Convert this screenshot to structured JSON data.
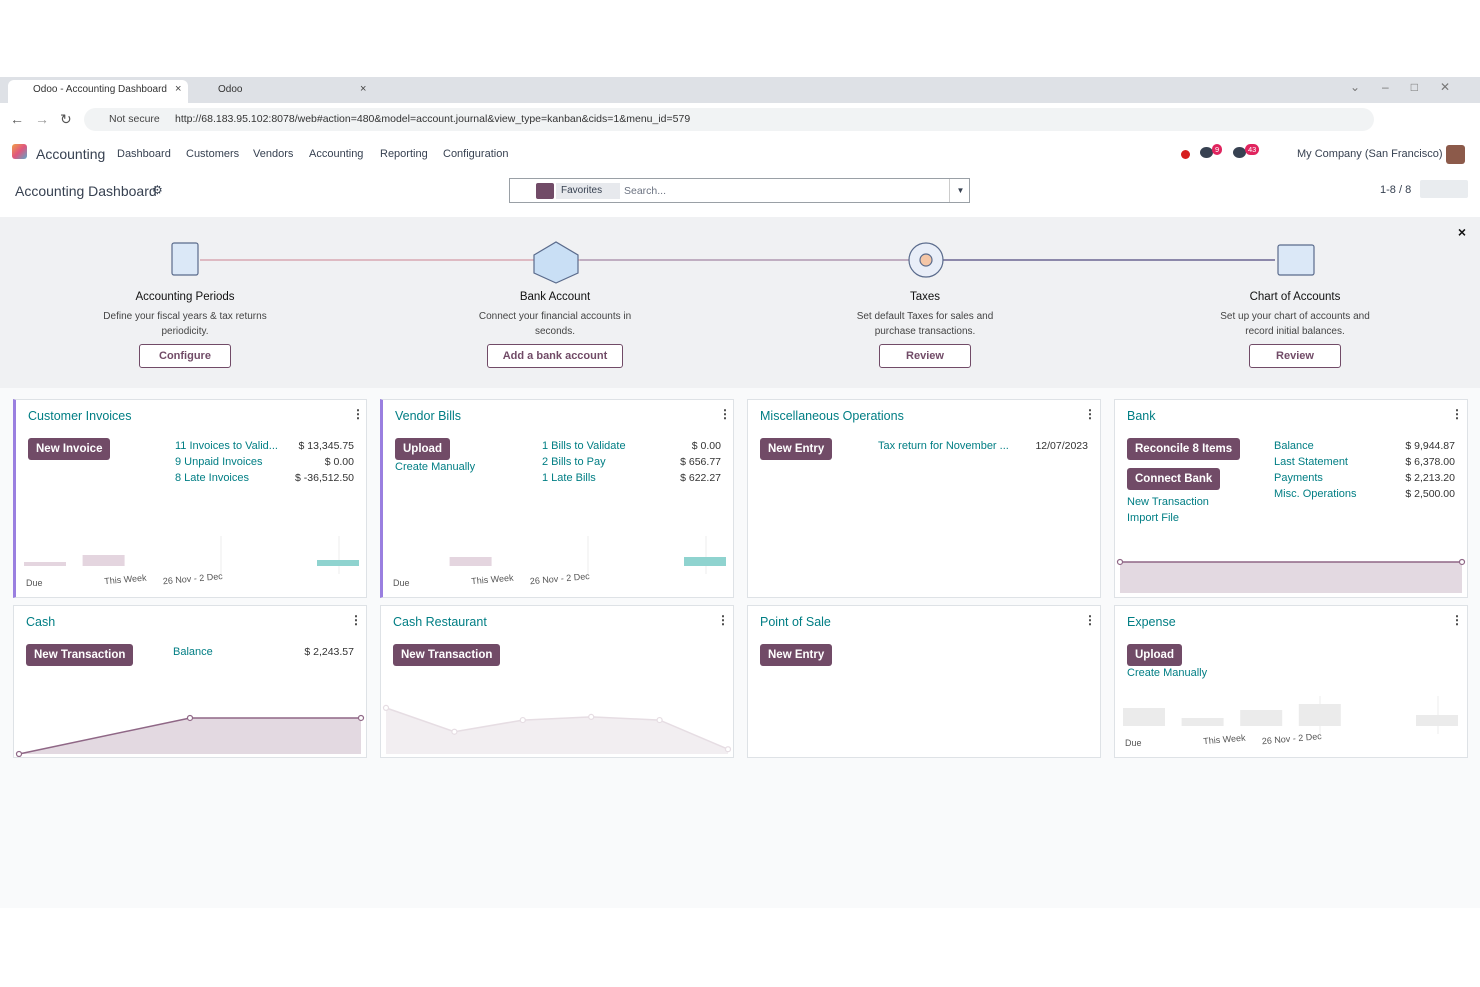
{
  "browser": {
    "tabs": [
      "Odoo - Accounting Dashboard",
      "Odoo"
    ],
    "security": "Not secure",
    "url": "http://68.183.95.102:8078/web#action=480&model=account.journal&view_type=kanban&cids=1&menu_id=579"
  },
  "navbar": {
    "app": "Accounting",
    "menus": [
      "Dashboard",
      "Customers",
      "Vendors",
      "Accounting",
      "Reporting",
      "Configuration"
    ],
    "badges": [
      "9",
      "43"
    ],
    "company": "My Company (San Francisco)"
  },
  "control": {
    "breadcrumb": "Accounting Dashboard",
    "facet": "Favorites",
    "search_placeholder": "Search...",
    "pager": "1-8 / 8"
  },
  "onboarding": [
    {
      "title": "Accounting Periods",
      "description": "Define your fiscal years & tax returns periodicity.",
      "button": "Configure"
    },
    {
      "title": "Bank Account",
      "description": "Connect your financial accounts in seconds.",
      "button": "Add a bank account"
    },
    {
      "title": "Taxes",
      "description": "Set default Taxes for sales and purchase transactions.",
      "button": "Review"
    },
    {
      "title": "Chart of Accounts",
      "description": "Set up your chart of accounts and record initial balances.",
      "button": "Review"
    }
  ],
  "journals": [
    {
      "name": "Customer Invoices",
      "buttons": [
        "New Invoice"
      ],
      "links": [],
      "stats": [
        [
          "11 Invoices to Valid...",
          "$ 13,345.75"
        ],
        [
          "9 Unpaid Invoices",
          "$ 0.00"
        ],
        [
          "8 Late Invoices",
          "$ -36,512.50"
        ]
      ],
      "graph": {
        "type": "bar",
        "categories": [
          "Due",
          "This Week",
          "26 Nov - 2 Dec",
          null,
          null,
          null
        ],
        "values": [
          2,
          5.5,
          0,
          0,
          0,
          3
        ],
        "colors": [
          "#e4d5df",
          "#e4d5df",
          "#8fd3cf",
          "#8fd3cf",
          "#8fd3cf",
          "#8fd3cf"
        ],
        "ylim": [
          0,
          20
        ]
      }
    },
    {
      "name": "Vendor Bills",
      "buttons": [
        "Upload"
      ],
      "links": [
        "Create Manually"
      ],
      "stats": [
        [
          "1 Bills to Validate",
          "$ 0.00"
        ],
        [
          "2 Bills to Pay",
          "$ 656.77"
        ],
        [
          "1 Late Bills",
          "$ 622.27"
        ]
      ],
      "graph": {
        "type": "bar",
        "categories": [
          "Due",
          "This Week",
          "26 Nov - 2 Dec",
          null,
          null,
          null
        ],
        "values": [
          0,
          4.5,
          0,
          0,
          0,
          4.5
        ],
        "colors": [
          "#e4d5df",
          "#e4d5df",
          "#8fd3cf",
          "#8fd3cf",
          "#8fd3cf",
          "#8fd3cf"
        ],
        "ylim": [
          0,
          20
        ]
      }
    },
    {
      "name": "Miscellaneous Operations",
      "buttons": [
        "New Entry"
      ],
      "links": [],
      "stats": [
        [
          "Tax return for November ...",
          "12/07/2023"
        ]
      ]
    },
    {
      "name": "Bank",
      "buttons": [
        "Reconcile 8 Items",
        "Connect Bank"
      ],
      "links": [
        "New Transaction",
        "Import File"
      ],
      "stats": [
        [
          "Balance",
          "$ 9,944.87"
        ],
        [
          "Last Statement",
          "$ 6,378.00"
        ],
        [
          "Payments",
          "$ 2,213.20"
        ],
        [
          "Misc. Operations",
          "$ 2,500.00"
        ]
      ],
      "graph": {
        "type": "line",
        "values": [
          9944.87,
          9944.87
        ],
        "ylim": [
          0,
          17000
        ],
        "color": "#8f6786"
      }
    },
    {
      "name": "Cash",
      "buttons": [
        "New Transaction"
      ],
      "links": [],
      "stats": [
        [
          "Balance",
          "$ 2,243.57"
        ]
      ],
      "graph": {
        "type": "line",
        "values": [
          0,
          2243.57,
          2243.57
        ],
        "ylim": [
          0,
          3300
        ],
        "color": "#8f6786"
      }
    },
    {
      "name": "Cash Restaurant",
      "buttons": [
        "New Transaction"
      ],
      "links": [],
      "stats": [],
      "graph": {
        "type": "line",
        "values": [
          87,
          42,
          64,
          70,
          64,
          9
        ],
        "ylim": [
          0,
          100
        ],
        "color": "#e6dde3"
      }
    },
    {
      "name": "Point of Sale",
      "buttons": [
        "New Entry"
      ],
      "links": [],
      "stats": []
    },
    {
      "name": "Expense",
      "buttons": [
        "Upload"
      ],
      "links": [
        "Create Manually"
      ],
      "stats": [],
      "graph": {
        "type": "bar",
        "categories": [
          "Due",
          "This Week",
          "26 Nov - 2 Dec",
          null,
          null,
          null
        ],
        "values": [
          9,
          4,
          8,
          11,
          0,
          5.5
        ],
        "colors": [
          "#ebebeb",
          "#ebebeb",
          "#ebebeb",
          "#ebebeb",
          "#ebebeb",
          "#ebebeb"
        ],
        "ylim": [
          0,
          20
        ]
      }
    }
  ]
}
